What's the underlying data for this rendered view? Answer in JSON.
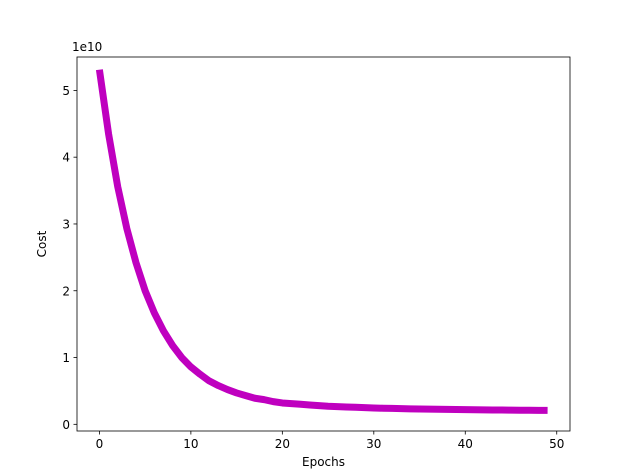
{
  "chart_data": {
    "type": "line",
    "title": "",
    "xlabel": "Epochs",
    "ylabel": "Cost",
    "y_offset_text": "1e10",
    "xlim": [
      -2.45,
      51.45
    ],
    "ylim": [
      -0.1,
      5.5
    ],
    "xticks": [
      0,
      10,
      20,
      30,
      40,
      50
    ],
    "xtick_labels": [
      "0",
      "10",
      "20",
      "30",
      "40",
      "50"
    ],
    "yticks": [
      0,
      1,
      2,
      3,
      4,
      5
    ],
    "ytick_labels": [
      "0",
      "1",
      "2",
      "3",
      "4",
      "5"
    ],
    "y_unit_multiplier": 10000000000,
    "grid": false,
    "legend": "none",
    "series": [
      {
        "color": "#bf00bf",
        "x": [
          0,
          1,
          2,
          3,
          4,
          5,
          6,
          7,
          8,
          9,
          10,
          11,
          12,
          13,
          14,
          15,
          16,
          17,
          18,
          19,
          20,
          21,
          22,
          23,
          24,
          25,
          26,
          27,
          28,
          29,
          30,
          31,
          32,
          33,
          34,
          35,
          36,
          37,
          38,
          39,
          40,
          41,
          42,
          43,
          44,
          45,
          46,
          47,
          48,
          49
        ],
        "y": [
          5.31,
          4.35,
          3.56,
          2.93,
          2.42,
          2.0,
          1.67,
          1.4,
          1.18,
          1.0,
          0.86,
          0.75,
          0.65,
          0.58,
          0.52,
          0.47,
          0.43,
          0.39,
          0.37,
          0.34,
          0.32,
          0.31,
          0.3,
          0.29,
          0.28,
          0.27,
          0.265,
          0.26,
          0.255,
          0.25,
          0.245,
          0.241,
          0.238,
          0.235,
          0.232,
          0.23,
          0.228,
          0.226,
          0.224,
          0.222,
          0.22,
          0.218,
          0.216,
          0.215,
          0.214,
          0.212,
          0.211,
          0.21,
          0.209,
          0.208
        ]
      }
    ]
  }
}
